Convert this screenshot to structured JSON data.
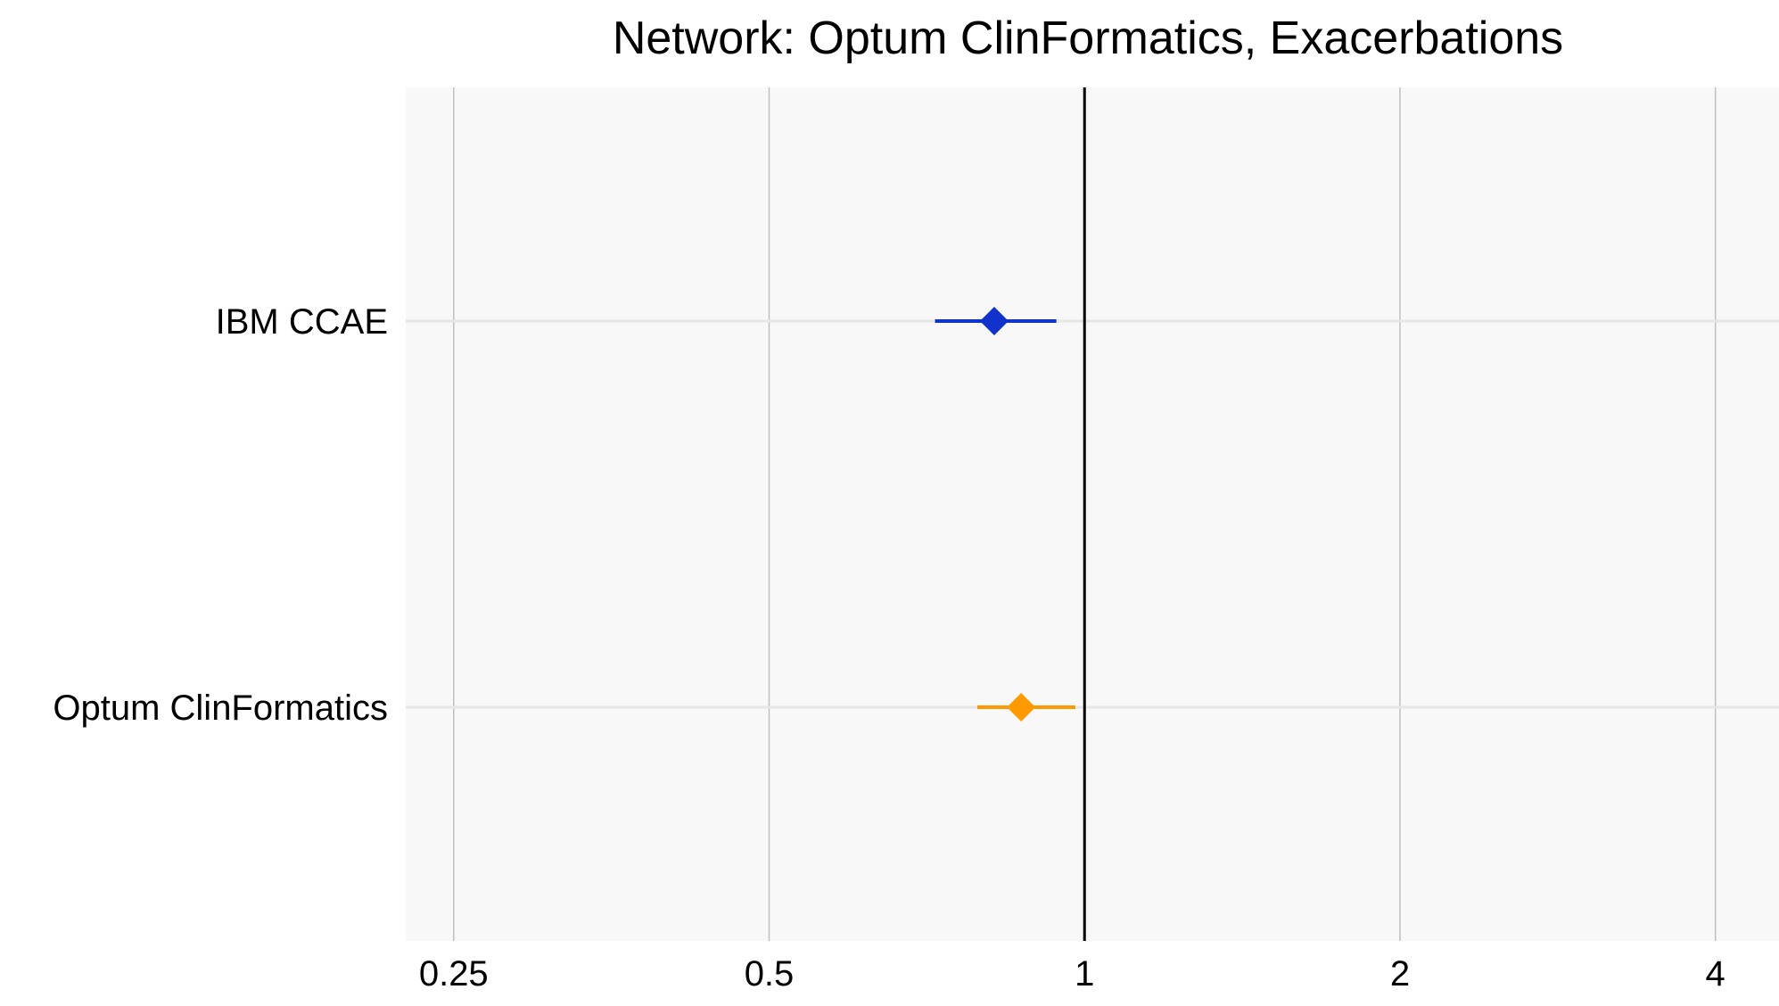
{
  "chart_data": {
    "type": "scatter",
    "title": "Network: Optum ClinFormatics, Exacerbations",
    "xlabel": "",
    "ylabel": "",
    "x_scale": "log2",
    "xlim": [
      0.225,
      4.6
    ],
    "x_ticks": [
      {
        "value": 0.25,
        "label": "0.25"
      },
      {
        "value": 0.5,
        "label": "0.5"
      },
      {
        "value": 1,
        "label": "1"
      },
      {
        "value": 2,
        "label": "2"
      },
      {
        "value": 4,
        "label": "4"
      }
    ],
    "reference_line": 1,
    "grid": true,
    "marker": "diamond",
    "categories": [
      "IBM CCAE",
      "Optum ClinFormatics"
    ],
    "series": [
      {
        "category": "IBM CCAE",
        "estimate": 0.82,
        "ci_lower": 0.72,
        "ci_upper": 0.94,
        "color": "#1133cc"
      },
      {
        "category": "Optum ClinFormatics",
        "estimate": 0.87,
        "ci_lower": 0.79,
        "ci_upper": 0.98,
        "color": "#ff9900"
      }
    ],
    "colors": {
      "panel_background": "#f8f8f8",
      "vertical_grid": "#c0c0c0",
      "horizontal_grid": "#e6e6e6",
      "reference_line": "#000000"
    }
  }
}
